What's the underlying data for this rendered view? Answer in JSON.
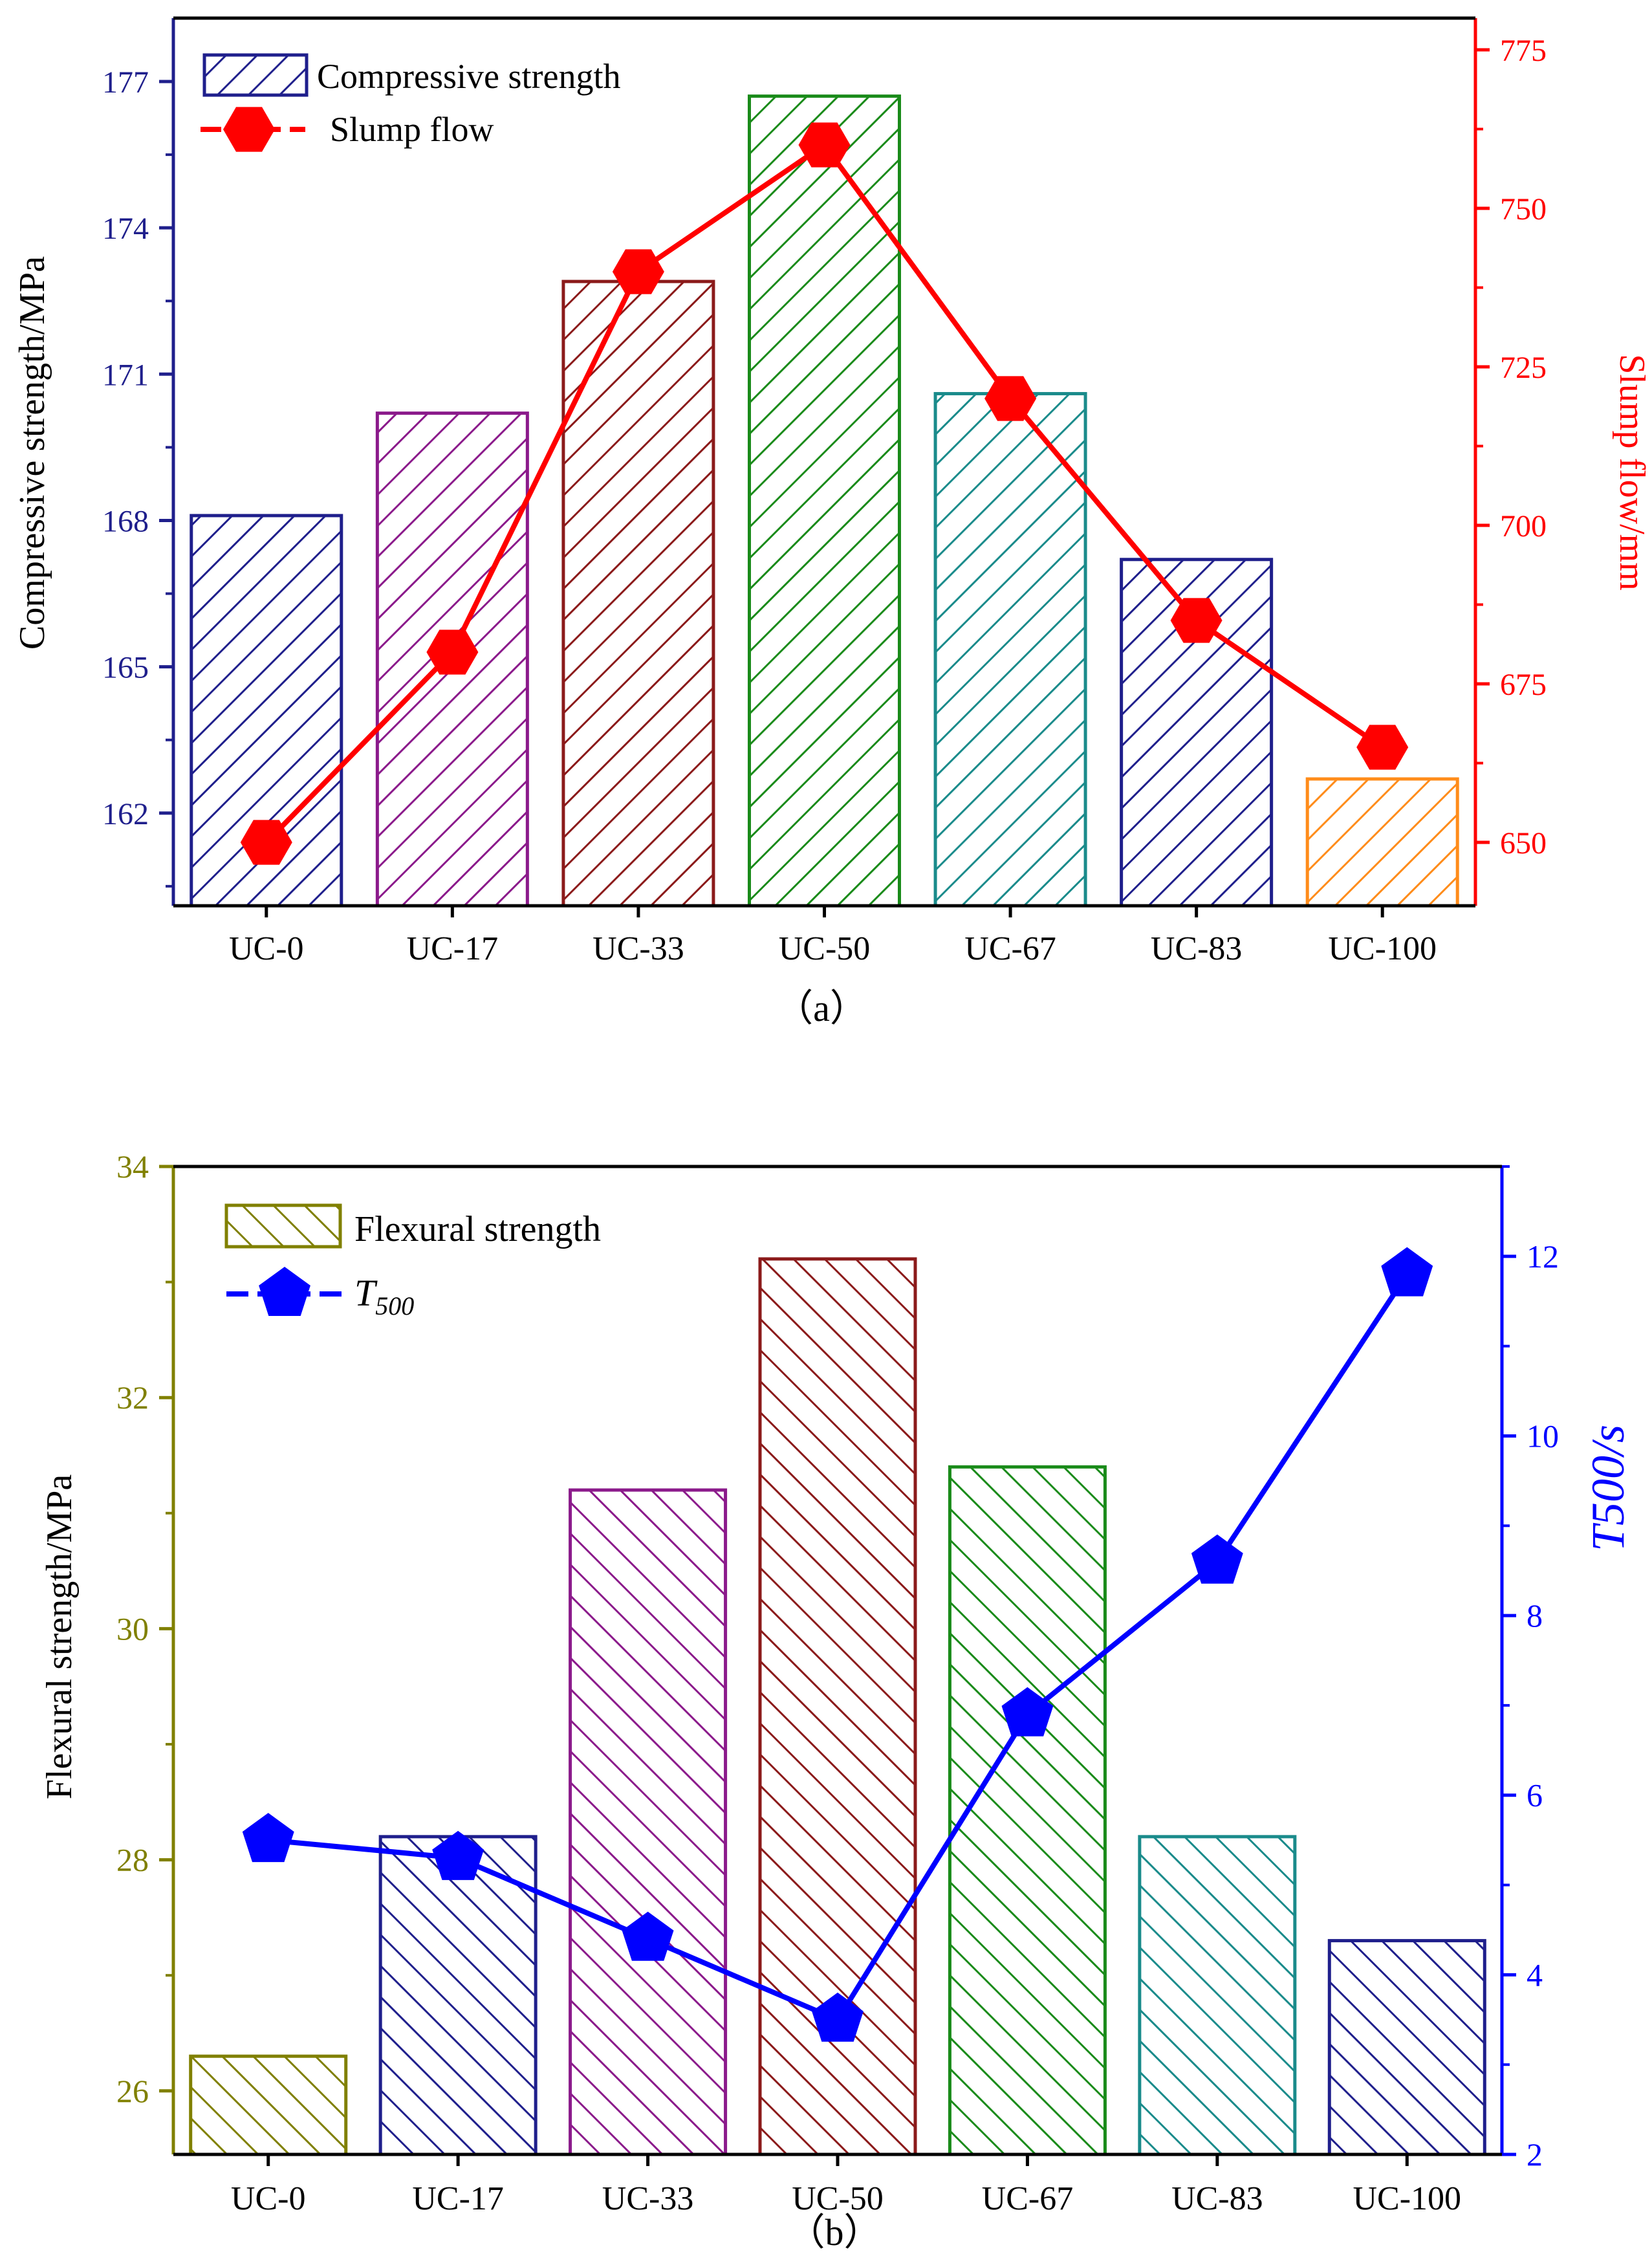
{
  "chart_data": [
    {
      "id": "a",
      "type": "bar+line",
      "panel_label": "（a）",
      "categories": [
        "UC-0",
        "UC-17",
        "UC-33",
        "UC-50",
        "UC-67",
        "UC-83",
        "UC-100"
      ],
      "bars": {
        "name": "Compressive strength",
        "values": [
          168.1,
          170.2,
          172.9,
          176.7,
          170.6,
          167.2,
          162.7
        ],
        "colors": [
          "#1f1f8c",
          "#8b1a8b",
          "#8b1a1a",
          "#1a8b1a",
          "#1a8b8b",
          "#1f1f8c",
          "#ff8c1a"
        ],
        "legend_color": "#1f1f8c"
      },
      "line": {
        "name": "Slump flow",
        "values": [
          650,
          680,
          740,
          760,
          720,
          685,
          665
        ],
        "color": "#ff0000",
        "marker": "hexagon"
      },
      "y_left": {
        "label": "Compressive strength/MPa",
        "range": [
          160.1,
          178.3
        ],
        "ticks": [
          162,
          165,
          168,
          171,
          174,
          177
        ],
        "color": "#1f1f8c",
        "label_color": "#000000"
      },
      "y_right": {
        "label": "Slump flow/mm",
        "range": [
          640,
          780
        ],
        "ticks": [
          650,
          675,
          700,
          725,
          750,
          775
        ],
        "color": "#ff0000",
        "label_color": "#ff0000"
      },
      "legend_position": "top-left"
    },
    {
      "id": "b",
      "type": "bar+line",
      "panel_label": "（b）",
      "categories": [
        "UC-0",
        "UC-17",
        "UC-33",
        "UC-50",
        "UC-67",
        "UC-83",
        "UC-100"
      ],
      "bars": {
        "name": "Flexural strength",
        "values": [
          26.3,
          28.2,
          31.2,
          33.2,
          31.4,
          28.2,
          27.3
        ],
        "colors": [
          "#808000",
          "#1f1f8c",
          "#8b1a8b",
          "#8b1a1a",
          "#1a8b1a",
          "#1a8b8b",
          "#1f1f8c"
        ],
        "legend_color": "#808000"
      },
      "line": {
        "name": "T",
        "name_sub": "500",
        "values": [
          5.5,
          5.3,
          4.4,
          3.5,
          6.9,
          8.6,
          11.8
        ],
        "color": "#0000ff",
        "marker": "pentagon"
      },
      "y_left": {
        "label": "Flexural strength/MPa",
        "range": [
          25.45,
          34.0
        ],
        "ticks": [
          26,
          28,
          30,
          32,
          34
        ],
        "color": "#808000",
        "label_color": "#000000"
      },
      "y_right": {
        "label": "T500/s",
        "range": [
          2,
          13
        ],
        "ticks": [
          2,
          4,
          6,
          8,
          10,
          12
        ],
        "color": "#0000ff",
        "label_color": "#0000ff"
      },
      "legend_position": "top-left"
    }
  ]
}
